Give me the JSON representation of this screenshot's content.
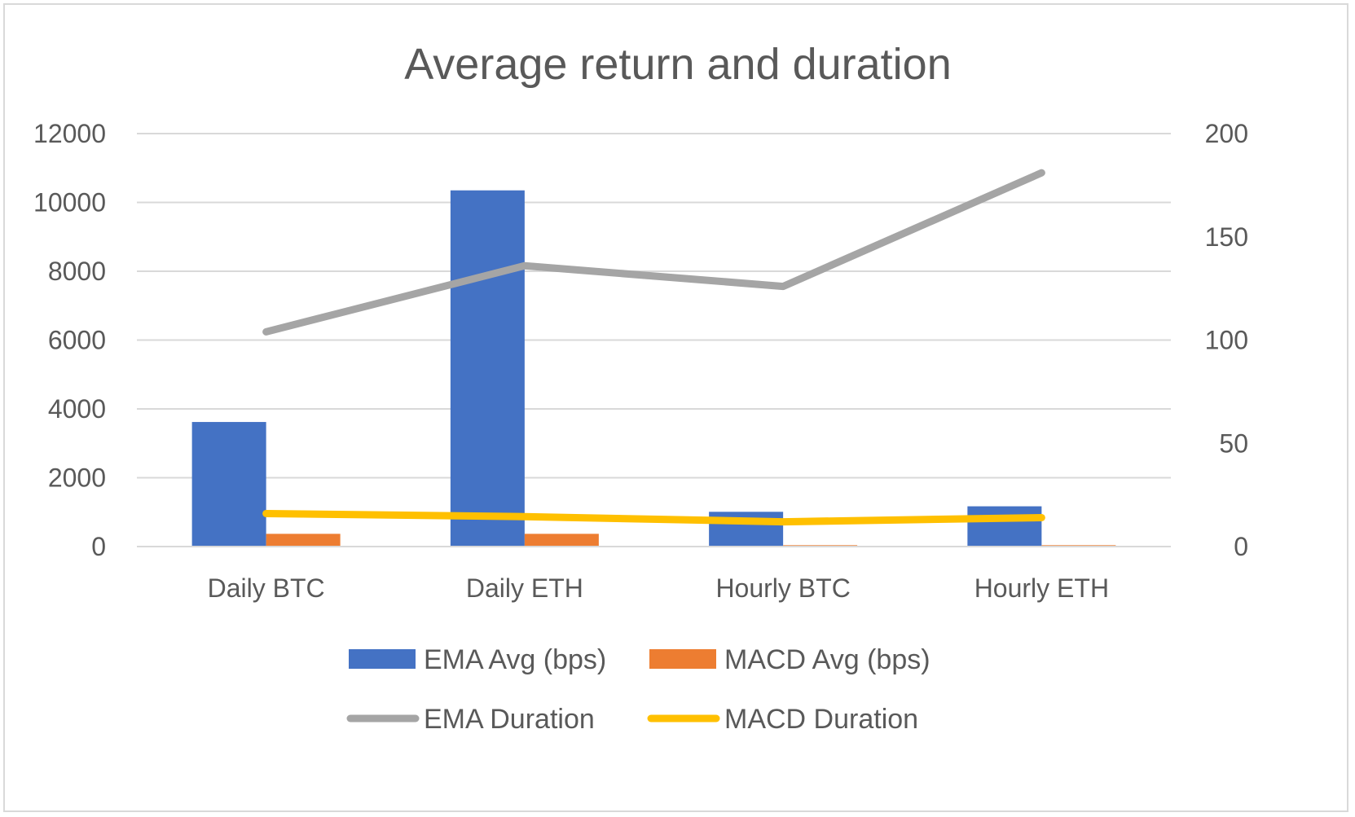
{
  "chart_data": {
    "type": "bar",
    "title": "Average return and duration",
    "categories": [
      "Daily BTC",
      "Daily ETH",
      "Hourly BTC",
      "Hourly ETH"
    ],
    "series": [
      {
        "name": "EMA Avg (bps)",
        "type": "bar",
        "axis": "left",
        "color": "#4472c4",
        "values": [
          3620,
          10350,
          1010,
          1170
        ]
      },
      {
        "name": "MACD Avg (bps)",
        "type": "bar",
        "axis": "left",
        "color": "#ed7d31",
        "values": [
          370,
          370,
          40,
          40
        ]
      },
      {
        "name": "EMA Duration",
        "type": "line",
        "axis": "right",
        "color": "#a5a5a5",
        "values": [
          104,
          136,
          126,
          181
        ]
      },
      {
        "name": "MACD Duration",
        "type": "line",
        "axis": "right",
        "color": "#ffc000",
        "values": [
          16,
          14.5,
          12,
          14
        ]
      }
    ],
    "y_left": {
      "min": 0,
      "max": 12000,
      "ticks": [
        "0",
        "2000",
        "4000",
        "6000",
        "8000",
        "10000",
        "12000"
      ]
    },
    "y_right": {
      "min": 0,
      "max": 200,
      "ticks": [
        "0",
        "50",
        "100",
        "150",
        "200"
      ]
    },
    "grid": true,
    "legend_position": "bottom"
  }
}
